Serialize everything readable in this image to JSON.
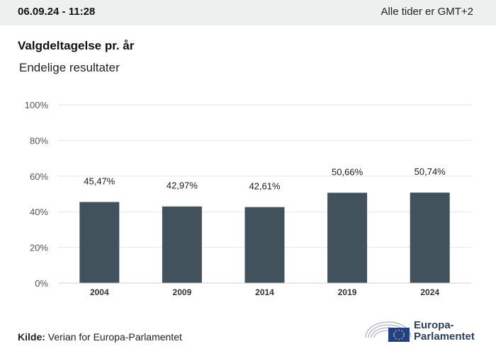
{
  "header": {
    "timestamp": "06.09.24 - 11:28",
    "timezone_note": "Alle tider er GMT+2"
  },
  "title": "Valgdeltagelse pr. år",
  "subtitle": "Endelige resultater",
  "footer": {
    "source_label": "Kilde:",
    "source_text": "Verian for Europa-Parlamentet",
    "logo_line1": "Europa-",
    "logo_line2": "Parlamentet"
  },
  "colors": {
    "bar": "#42525c",
    "grid": "#e6e6e6",
    "axis": "#c9d3dc",
    "tick_text": "#555555",
    "logo_blue": "#1f3f8f",
    "logo_star": "#f5d300"
  },
  "chart_data": {
    "type": "bar",
    "categories": [
      "2004",
      "2009",
      "2014",
      "2019",
      "2024"
    ],
    "values": [
      45.47,
      42.97,
      42.61,
      50.66,
      50.74
    ],
    "data_labels": [
      "45,47%",
      "42,97%",
      "42,61%",
      "50,66%",
      "50,74%"
    ],
    "ylim": [
      0,
      100
    ],
    "yticks": [
      "0%",
      "20%",
      "40%",
      "60%",
      "80%",
      "100%"
    ],
    "ytick_values": [
      0,
      20,
      40,
      60,
      80,
      100
    ],
    "grid": true
  }
}
